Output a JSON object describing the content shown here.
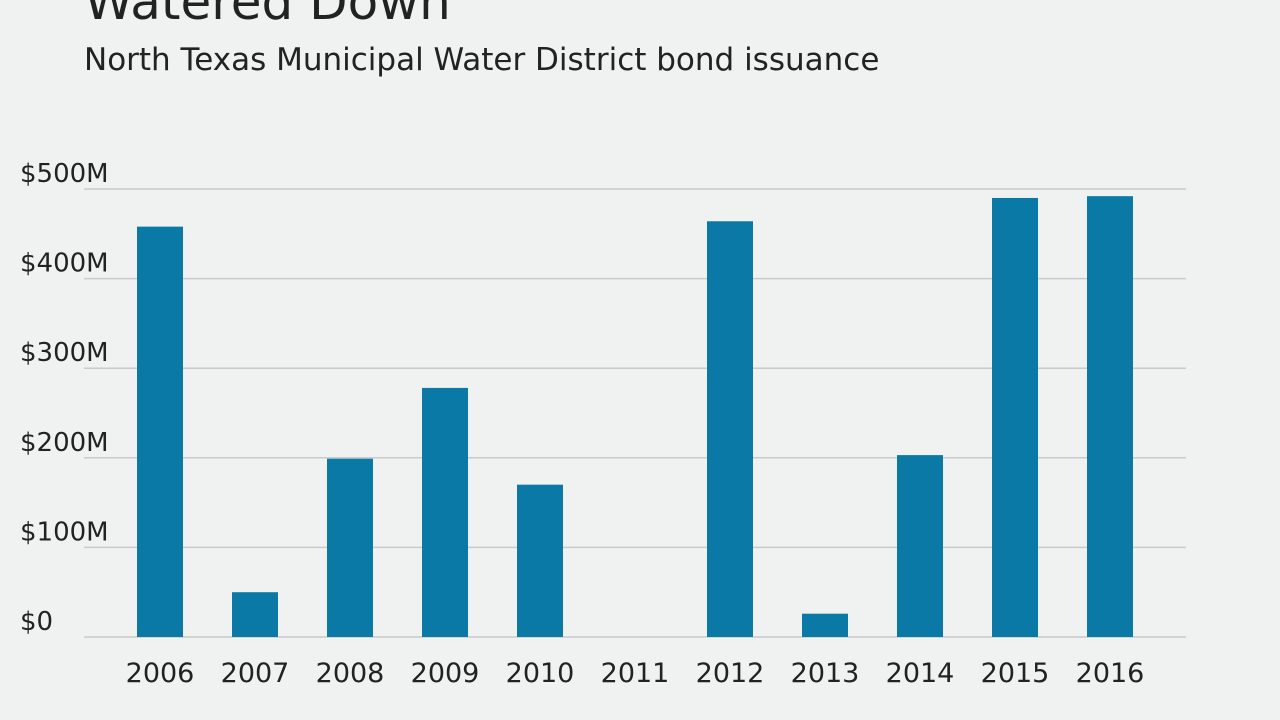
{
  "chart_data": {
    "type": "bar",
    "title": "Watered Down",
    "subtitle": "North Texas Municipal Water District bond issuance",
    "categories": [
      "2006",
      "2007",
      "2008",
      "2009",
      "2010",
      "2011",
      "2012",
      "2013",
      "2014",
      "2015",
      "2016"
    ],
    "values": [
      458,
      50,
      199,
      278,
      170,
      0,
      464,
      26,
      203,
      490,
      492
    ],
    "ylim": [
      0,
      500
    ],
    "yticks": [
      {
        "value": 0,
        "label": "$0"
      },
      {
        "value": 100,
        "label": "$100M"
      },
      {
        "value": 200,
        "label": "$200M"
      },
      {
        "value": 300,
        "label": "$300M"
      },
      {
        "value": 400,
        "label": "$400M"
      },
      {
        "value": 500,
        "label": "$500M"
      }
    ],
    "xlabel": "",
    "ylabel": "",
    "grid": "horizontal",
    "bar_color": "#0a79a6",
    "grid_color": "#c8cbca"
  }
}
